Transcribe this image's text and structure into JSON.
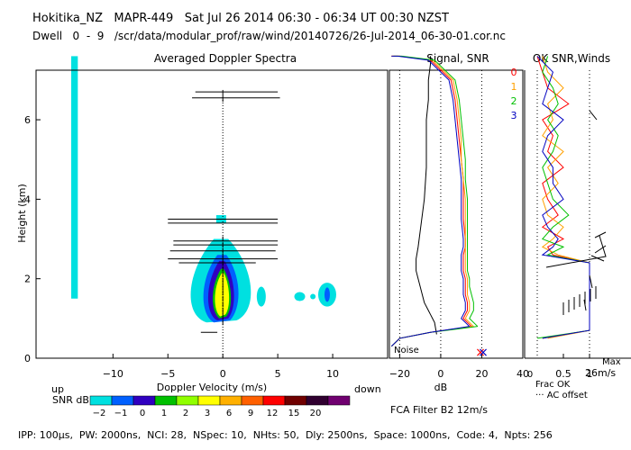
{
  "header": {
    "line1": "Hokitika_NZ   MAPR-449   Sat Jul 26 2014 06:30 - 06:34 UT 00:30 NZST",
    "line2": "Dwell   0  -  9   /scr/data/modular_prof/raw/wind/20140726/26-Jul-2014_06-30-01.cor.nc"
  },
  "footer": {
    "params": "IPP: 100μs,  PW: 2000ns,  NCI: 28,  NSpec: 10,  NHts: 50,  Dly: 2500ns,  Space: 1000ns,  Code: 4,  Npts: 256",
    "filter": "FCA Filter B2 12m/s"
  },
  "colors": {
    "snr_scale": [
      "#00e0e0",
      "#0060ff",
      "#3000c0",
      "#00c000",
      "#90ff00",
      "#ffff00",
      "#ffb000",
      "#ff6000",
      "#ff0000",
      "#700000",
      "#300030",
      "#700070"
    ],
    "series": [
      "#ff0000",
      "#ffa000",
      "#00c000",
      "#0000c0",
      "#000000"
    ]
  },
  "chart_data": [
    {
      "type": "heatmap",
      "title": "Averaged Doppler Spectra",
      "xlabel": "Doppler Velocity (m/s)",
      "ylabel": "Height (km)",
      "xlim": [
        -17,
        15
      ],
      "ylim": [
        0,
        7.7
      ],
      "xticks": [
        -10,
        -5,
        0,
        5,
        10
      ],
      "yticks": [
        0,
        2,
        4,
        6
      ],
      "direction_labels": {
        "left": "up",
        "right": "down"
      },
      "colorbar": {
        "label": "SNR dB",
        "ticks": [
          "-2",
          "-1",
          "0",
          "1",
          "2",
          "3",
          "6",
          "9",
          "12",
          "15",
          "20"
        ]
      },
      "echo_regions": [
        {
          "name": "ground clutter strip",
          "v_min": -13.8,
          "v_max": -13.2,
          "h_min": 1.5,
          "h_max": 7.6,
          "snr_db": -2
        },
        {
          "name": "main clear-air echo",
          "center_v": 0,
          "h_min": 0.8,
          "h_max": 3.0,
          "peak_snr_db": 3
        },
        {
          "name": "echo near 9.5 m/s",
          "center_v": 9.5,
          "h_min": 1.3,
          "h_max": 1.9,
          "peak_snr_db": -1
        },
        {
          "name": "echo near 3.5 m/s",
          "center_v": 3.5,
          "h_min": 1.3,
          "h_max": 1.8,
          "peak_snr_db": -2
        }
      ],
      "mean_velocity_bars": [
        {
          "height_km": 6.7,
          "v_min": -2.5,
          "v_max": 5
        },
        {
          "height_km": 6.55,
          "v_min": -2.8,
          "v_max": 5.2
        },
        {
          "height_km": 3.5,
          "v_min": -5,
          "v_max": 5
        },
        {
          "height_km": 3.4,
          "v_min": -5,
          "v_max": 5
        },
        {
          "height_km": 2.95,
          "v_min": -4.5,
          "v_max": 5
        },
        {
          "height_km": 2.85,
          "v_min": -4.5,
          "v_max": 5
        },
        {
          "height_km": 2.7,
          "v_min": -4.8,
          "v_max": 4.8
        },
        {
          "height_km": 2.5,
          "v_min": -5,
          "v_max": 5
        },
        {
          "height_km": 2.4,
          "v_min": -4,
          "v_max": 3
        },
        {
          "height_km": 0.65,
          "v_min": -2,
          "v_max": -0.5
        }
      ]
    },
    {
      "type": "line",
      "title": "Signal, SNR",
      "xlabel": "dB",
      "xlim": [
        -25,
        40
      ],
      "xticks": [
        -20,
        0,
        20,
        40
      ],
      "ylim": [
        0,
        7.7
      ],
      "legend": [
        "0",
        "1",
        "2",
        "3"
      ],
      "annotations": [
        "Noise"
      ],
      "series": [
        {
          "name": "0",
          "x": [
            15,
            11,
            13,
            13,
            12,
            12,
            12,
            11,
            11,
            11,
            12,
            12,
            11,
            11,
            11,
            10,
            9,
            8,
            7,
            5,
            -5,
            -20,
            -24
          ],
          "y": [
            0.8,
            1,
            1.2,
            1.4,
            1.6,
            1.8,
            2,
            2.2,
            2.4,
            2.6,
            2.8,
            3,
            3.5,
            4,
            4.5,
            5,
            5.5,
            6,
            6.5,
            7,
            7.5,
            7.6,
            7.6
          ]
        },
        {
          "name": "1",
          "x": [
            16,
            12,
            14,
            14,
            13,
            13,
            13,
            12,
            12,
            12,
            12,
            12,
            12,
            12,
            11,
            10,
            10,
            9,
            8,
            6,
            -4,
            -20,
            -24
          ],
          "y": [
            0.8,
            1,
            1.2,
            1.4,
            1.6,
            1.8,
            2,
            2.2,
            2.4,
            2.6,
            2.8,
            3,
            3.5,
            4,
            4.5,
            5,
            5.5,
            6,
            6.5,
            7,
            7.5,
            7.6,
            7.6
          ]
        },
        {
          "name": "2",
          "x": [
            18,
            14,
            16,
            16,
            15,
            14,
            14,
            13,
            13,
            13,
            13,
            13,
            13,
            13,
            12,
            12,
            11,
            10,
            9,
            7,
            -3,
            -19,
            -23
          ],
          "y": [
            0.8,
            1,
            1.2,
            1.4,
            1.6,
            1.8,
            2,
            2.2,
            2.4,
            2.6,
            2.8,
            3,
            3.5,
            4,
            4.5,
            5,
            5.5,
            6,
            6.5,
            7,
            7.5,
            7.6,
            7.6
          ]
        },
        {
          "name": "3",
          "x": [
            14,
            10,
            12,
            12,
            11,
            11,
            11,
            10,
            10,
            10,
            11,
            11,
            10,
            10,
            10,
            9,
            8,
            7,
            6,
            4,
            -6,
            -21,
            -24
          ],
          "y": [
            0.8,
            1,
            1.2,
            1.4,
            1.6,
            1.8,
            2,
            2.2,
            2.4,
            2.6,
            2.8,
            3,
            3.5,
            4,
            4.5,
            5,
            5.5,
            6,
            6.5,
            7,
            7.5,
            7.6,
            7.6
          ]
        }
      ]
    },
    {
      "type": "line",
      "title": "OK SNR,Winds",
      "xlabel": "Frac OK",
      "xlim": [
        0,
        1
      ],
      "xticks": [
        "0.5",
        "1"
      ],
      "ylim": [
        0,
        7.7
      ],
      "legend": [
        "Frac OK",
        "AC offset"
      ],
      "wind_scale": {
        "label": "Max",
        "value": "26m/s"
      }
    }
  ]
}
